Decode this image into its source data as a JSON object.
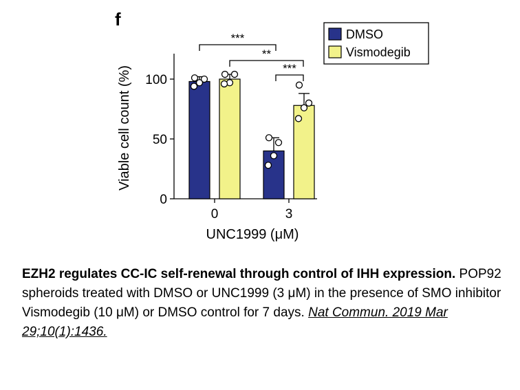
{
  "panel_label": "f",
  "chart_data": {
    "type": "bar",
    "title": "",
    "xlabel": "UNC1999 (μM)",
    "ylabel": "Viable cell count (%)",
    "categories": [
      "0",
      "3"
    ],
    "ylim": [
      0,
      120
    ],
    "yticks": [
      "0",
      "50",
      "100"
    ],
    "series": [
      {
        "name": "DMSO",
        "color": "#28338a",
        "values": [
          98,
          40
        ],
        "errors": [
          4,
          11
        ],
        "points": [
          [
            101,
            100,
            97,
            94
          ],
          [
            51,
            47,
            36,
            28
          ]
        ]
      },
      {
        "name": "Vismodegib",
        "color": "#f2f28a",
        "values": [
          100,
          78
        ],
        "errors": [
          4,
          10
        ],
        "points": [
          [
            104,
            104,
            97,
            96
          ],
          [
            95,
            80,
            76,
            67
          ]
        ]
      }
    ],
    "significance": [
      "***",
      "**",
      "***"
    ],
    "legend_position": "top-right",
    "grid": false
  },
  "caption": {
    "title": "EZH2 regulates CC-IC self-renewal through control of IHH expression.",
    "body": "POP92 spheroids treated with DMSO or UNC1999 (3 μM) in the presence of SMO inhibitor Vismodegib (10 μM) or DMSO control for 7 days.",
    "citation": "Nat Commun. 2019 Mar 29;10(1):1436."
  }
}
